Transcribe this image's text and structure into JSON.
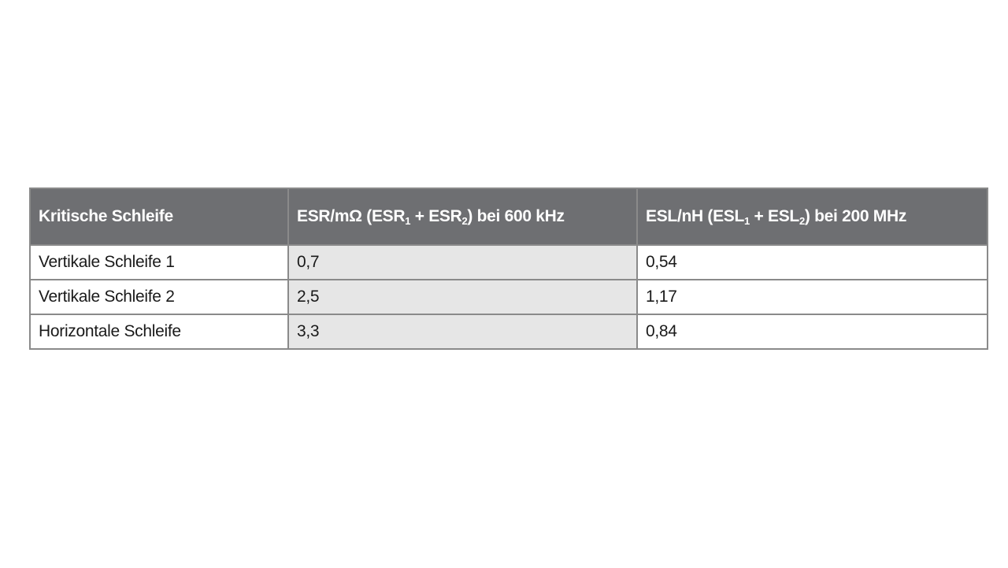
{
  "table": {
    "header": [
      [
        "Kritische Schleife"
      ],
      [
        "ESR/mΩ (ESR",
        "1",
        " + ESR",
        "2",
        ") bei 600 kHz"
      ],
      [
        "ESL/nH (ESL",
        "1",
        " + ESL",
        "2",
        ") bei 200 MHz"
      ]
    ],
    "rows": [
      [
        "Vertikale Schleife 1",
        "0,7",
        "0,54"
      ],
      [
        "Vertikale Schleife 2",
        "2,5",
        "1,17"
      ],
      [
        "Horizontale Schleife",
        "3,3",
        "0,84"
      ]
    ]
  }
}
